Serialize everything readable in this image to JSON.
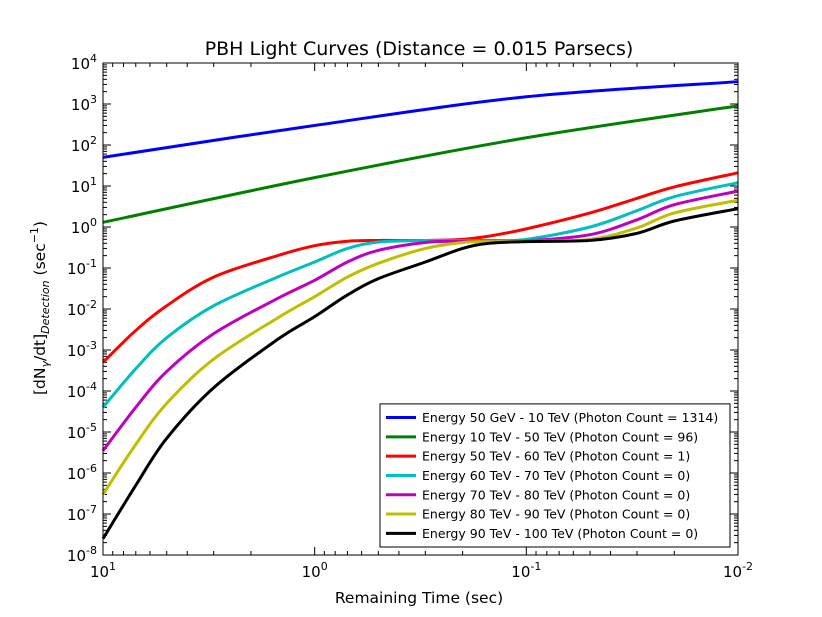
{
  "chart_data": {
    "type": "line",
    "title": "PBH Light Curves (Distance = 0.015 Parsecs)",
    "xlabel": "Remaining Time (sec)",
    "ylabel": {
      "prefix": "[dN",
      "sub1": "γ",
      "mid": "/dt]",
      "sub2": "Detection",
      "suffix": " (sec",
      "sup": "−1",
      "end": ")"
    },
    "x_scale": "log",
    "x_reversed": true,
    "y_scale": "log",
    "xlim": [
      10,
      0.01
    ],
    "ylim": [
      1e-08,
      10000
    ],
    "x_ticks": [
      {
        "value": 10,
        "base": "10",
        "exp": "1"
      },
      {
        "value": 1,
        "base": "10",
        "exp": "0"
      },
      {
        "value": 0.1,
        "base": "10",
        "exp": "-1"
      },
      {
        "value": 0.01,
        "base": "10",
        "exp": "-2"
      }
    ],
    "y_ticks": [
      {
        "value": 1e-08,
        "base": "10",
        "exp": "-8"
      },
      {
        "value": 1e-07,
        "base": "10",
        "exp": "-7"
      },
      {
        "value": 1e-06,
        "base": "10",
        "exp": "-6"
      },
      {
        "value": 1e-05,
        "base": "10",
        "exp": "-5"
      },
      {
        "value": 0.0001,
        "base": "10",
        "exp": "-4"
      },
      {
        "value": 0.001,
        "base": "10",
        "exp": "-3"
      },
      {
        "value": 0.01,
        "base": "10",
        "exp": "-2"
      },
      {
        "value": 0.1,
        "base": "10",
        "exp": "-1"
      },
      {
        "value": 1,
        "base": "10",
        "exp": "0"
      },
      {
        "value": 10,
        "base": "10",
        "exp": "1"
      },
      {
        "value": 100,
        "base": "10",
        "exp": "2"
      },
      {
        "value": 1000,
        "base": "10",
        "exp": "3"
      },
      {
        "value": 10000,
        "base": "10",
        "exp": "4"
      }
    ],
    "legend_position": "bottom-right",
    "series": [
      {
        "name": "Energy 50 GeV - 10 TeV (Photon Count = 1314)",
        "color": "#0000ff",
        "x": [
          10,
          1,
          0.1,
          0.01
        ],
        "y": [
          50,
          300,
          1500,
          3500
        ]
      },
      {
        "name": "Energy 10 TeV - 50 TeV (Photon Count = 96)",
        "color": "#008000",
        "x": [
          10,
          1,
          0.1,
          0.01
        ],
        "y": [
          1.3,
          16,
          150,
          900
        ]
      },
      {
        "name": "Energy 50 TeV - 60 TeV (Photon Count = 1)",
        "color": "#ff0000",
        "x": [
          10,
          7,
          5,
          3,
          1.5,
          1,
          0.7,
          0.5,
          0.3,
          0.2,
          0.15,
          0.1,
          0.05,
          0.03,
          0.02,
          0.01
        ],
        "y": [
          0.0005,
          0.003,
          0.012,
          0.06,
          0.2,
          0.35,
          0.45,
          0.47,
          0.47,
          0.5,
          0.6,
          0.9,
          2.2,
          5,
          9.5,
          21
        ]
      },
      {
        "name": "Energy 60 TeV - 70 TeV (Photon Count = 0)",
        "color": "#00bfbf",
        "x": [
          10,
          7,
          5,
          3,
          1.5,
          1,
          0.7,
          0.5,
          0.3,
          0.2,
          0.15,
          0.1,
          0.05,
          0.03,
          0.02,
          0.01
        ],
        "y": [
          4e-05,
          0.00035,
          0.002,
          0.012,
          0.06,
          0.14,
          0.3,
          0.43,
          0.47,
          0.47,
          0.47,
          0.5,
          1,
          2.5,
          5.5,
          12
        ]
      },
      {
        "name": "Energy 70 TeV - 80 TeV (Photon Count = 0)",
        "color": "#bf00bf",
        "x": [
          10,
          7,
          5,
          3,
          1.5,
          1,
          0.7,
          0.5,
          0.3,
          0.2,
          0.15,
          0.1,
          0.05,
          0.03,
          0.02,
          0.01
        ],
        "y": [
          3.5e-06,
          4e-05,
          0.0003,
          0.0025,
          0.018,
          0.05,
          0.14,
          0.27,
          0.42,
          0.45,
          0.45,
          0.46,
          0.65,
          1.5,
          3.5,
          7.5
        ]
      },
      {
        "name": "Energy 80 TeV - 90 TeV (Photon Count = 0)",
        "color": "#bfbf00",
        "x": [
          10,
          7,
          5,
          3,
          1.5,
          1,
          0.7,
          0.5,
          0.3,
          0.2,
          0.15,
          0.1,
          0.05,
          0.03,
          0.02,
          0.01
        ],
        "y": [
          3e-07,
          5e-06,
          5e-05,
          0.0006,
          0.006,
          0.02,
          0.06,
          0.13,
          0.3,
          0.42,
          0.44,
          0.45,
          0.5,
          0.95,
          2.2,
          4.5
        ]
      },
      {
        "name": "Energy 90 TeV - 100 TeV (Photon Count = 0)",
        "color": "#000000",
        "x": [
          10,
          7,
          5,
          3,
          1.5,
          1,
          0.7,
          0.5,
          0.3,
          0.2,
          0.15,
          0.1,
          0.05,
          0.03,
          0.02,
          0.01
        ],
        "y": [
          2.5e-08,
          5e-07,
          7e-06,
          0.00012,
          0.0018,
          0.0065,
          0.022,
          0.055,
          0.14,
          0.3,
          0.4,
          0.44,
          0.47,
          0.7,
          1.4,
          2.8
        ]
      }
    ]
  }
}
